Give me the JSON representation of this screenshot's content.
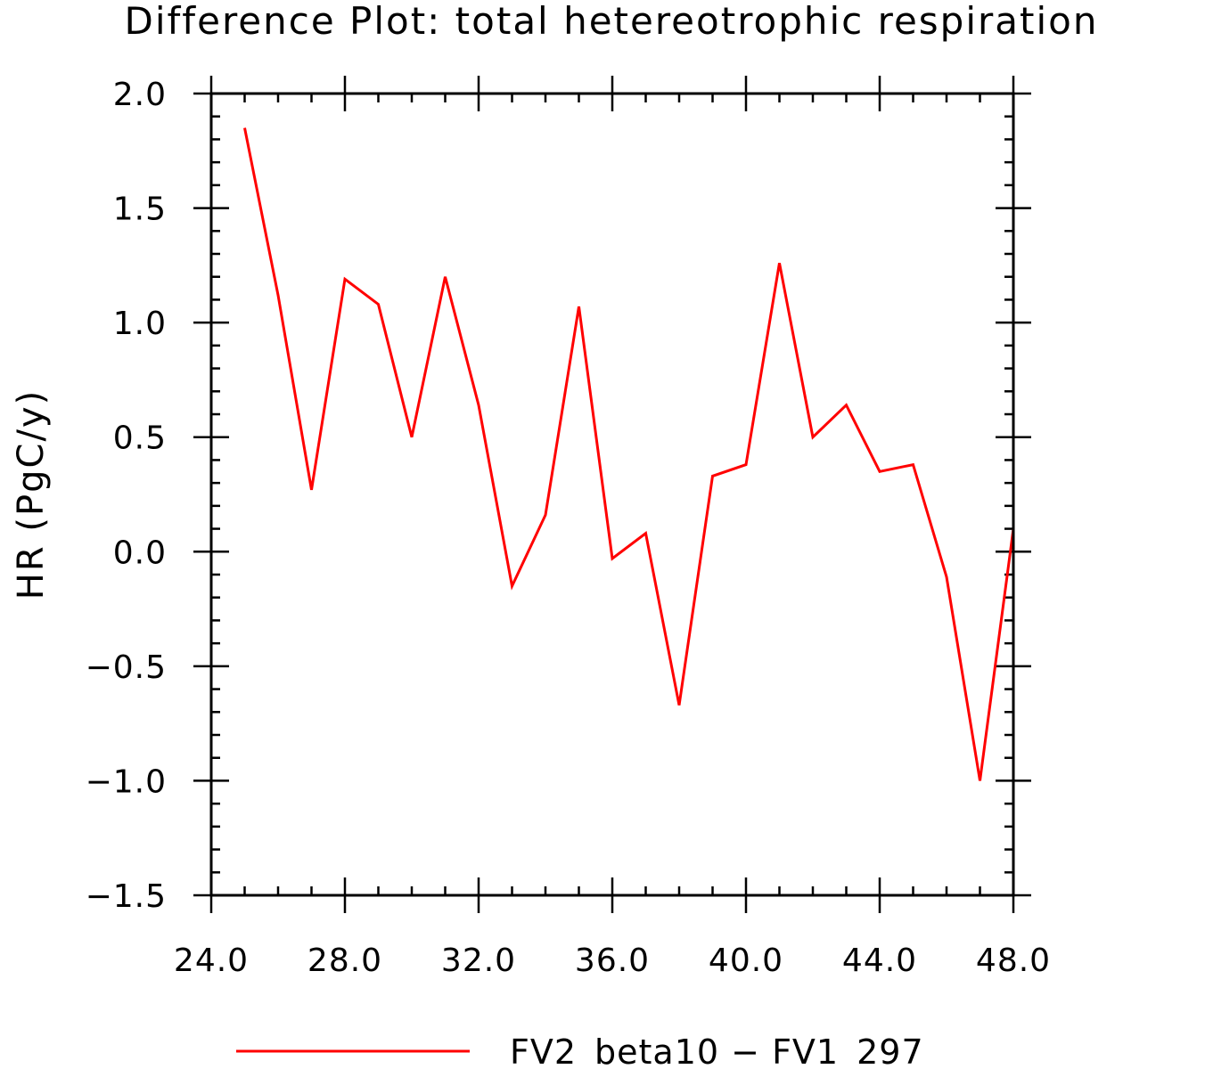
{
  "chart_data": {
    "type": "line",
    "title": "Difference Plot: total hetereotrophic respiration",
    "xlabel": "",
    "ylabel": "HR  (PgC/y)",
    "xlim": [
      24,
      48
    ],
    "ylim": [
      -1.5,
      2.0
    ],
    "x_ticks": [
      24,
      28,
      32,
      36,
      40,
      44,
      48
    ],
    "x_tick_labels": [
      "24.0",
      "28.0",
      "32.0",
      "36.0",
      "40.0",
      "44.0",
      "48.0"
    ],
    "y_ticks": [
      2.0,
      1.5,
      1.0,
      0.5,
      0.0,
      -0.5,
      -1.0,
      -1.5
    ],
    "y_tick_labels": [
      "2.0",
      "1.5",
      "1.0",
      "0.5",
      "0.0",
      "−0.5",
      "−1.0",
      "−1.5"
    ],
    "grid": false,
    "legend_position": "bottom",
    "series": [
      {
        "name": "FV2_beta10 − FV1_297",
        "color": "#ff0000",
        "x": [
          25,
          26,
          27,
          28,
          29,
          30,
          31,
          32,
          33,
          34,
          35,
          36,
          37,
          38,
          39,
          40,
          41,
          42,
          43,
          44,
          45,
          46,
          47,
          48
        ],
        "y": [
          1.85,
          1.12,
          0.27,
          1.19,
          1.08,
          0.5,
          1.2,
          0.64,
          -0.15,
          0.16,
          1.07,
          -0.03,
          0.08,
          -0.67,
          0.33,
          0.38,
          1.26,
          0.5,
          0.64,
          0.35,
          0.38,
          -0.11,
          -1.0,
          0.1
        ]
      }
    ]
  }
}
